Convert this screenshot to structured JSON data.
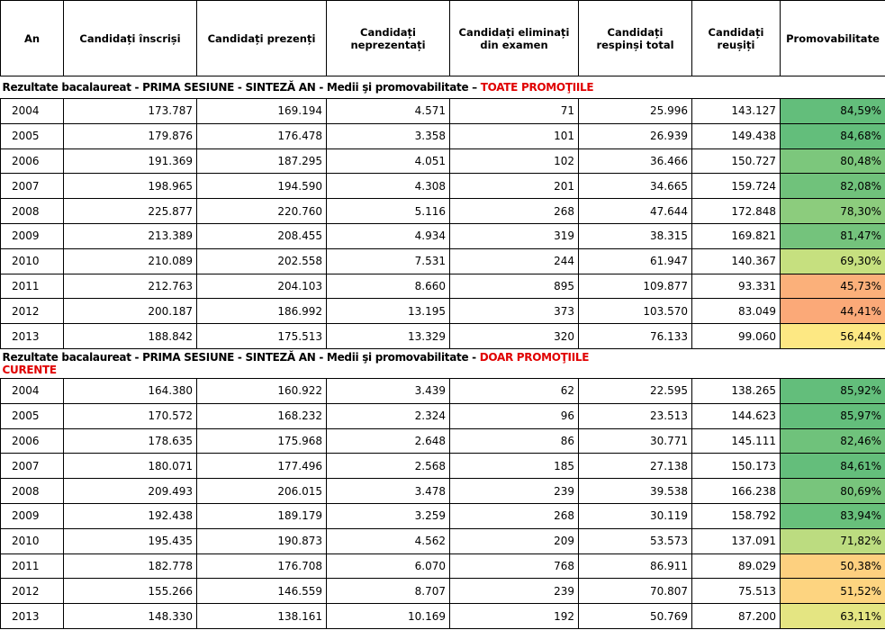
{
  "table": {
    "header": [
      "An",
      "Candidați înscriși",
      "Candidați prezenți",
      "Candidați neprezentați",
      "Candidați eliminați din examen",
      "Candidați respinși total",
      "Candidați reușiți",
      "Promovabilitate"
    ],
    "sections": [
      {
        "title": "Rezultate bacalaureat - PRIMA SESIUNE - SINTEZĂ AN - Medii şi promovabilitate –",
        "title_highlight": "TOATE PROMOŢIILE",
        "colors": [
          "#63be7b",
          "#63be7b",
          "#7cc77c",
          "#70c27b",
          "#8ccc7d",
          "#74c37c",
          "#c6e07f",
          "#fbb07a",
          "#fba978",
          "#fde883"
        ],
        "rows": [
          [
            "2004",
            "173.787",
            "169.194",
            "4.571",
            "71",
            "25.996",
            "143.127",
            "84,59%"
          ],
          [
            "2005",
            "179.876",
            "176.478",
            "3.358",
            "101",
            "26.939",
            "149.438",
            "84,68%"
          ],
          [
            "2006",
            "191.369",
            "187.295",
            "4.051",
            "102",
            "36.466",
            "150.727",
            "80,48%"
          ],
          [
            "2007",
            "198.965",
            "194.590",
            "4.308",
            "201",
            "34.665",
            "159.724",
            "82,08%"
          ],
          [
            "2008",
            "225.877",
            "220.760",
            "5.116",
            "268",
            "47.644",
            "172.848",
            "78,30%"
          ],
          [
            "2009",
            "213.389",
            "208.455",
            "4.934",
            "319",
            "38.315",
            "169.821",
            "81,47%"
          ],
          [
            "2010",
            "210.089",
            "202.558",
            "7.531",
            "244",
            "61.947",
            "140.367",
            "69,30%"
          ],
          [
            "2011",
            "212.763",
            "204.103",
            "8.660",
            "895",
            "109.877",
            "93.331",
            "45,73%"
          ],
          [
            "2012",
            "200.187",
            "186.992",
            "13.195",
            "373",
            "103.570",
            "83.049",
            "44,41%"
          ],
          [
            "2013",
            "188.842",
            "175.513",
            "13.329",
            "320",
            "76.133",
            "99.060",
            "56,44%"
          ]
        ]
      },
      {
        "title": "Rezultate bacalaureat - PRIMA SESIUNE - SINTEZĂ AN - Medii şi promovabilitate -",
        "title_highlight": "DOAR PROMOŢIILE CURENTE",
        "colors": [
          "#63be7b",
          "#63be7b",
          "#6fc27b",
          "#64be7b",
          "#78c57c",
          "#68c07b",
          "#bcdc80",
          "#fdd07f",
          "#fdd480",
          "#e4e582"
        ],
        "rows": [
          [
            "2004",
            "164.380",
            "160.922",
            "3.439",
            "62",
            "22.595",
            "138.265",
            "85,92%"
          ],
          [
            "2005",
            "170.572",
            "168.232",
            "2.324",
            "96",
            "23.513",
            "144.623",
            "85,97%"
          ],
          [
            "2006",
            "178.635",
            "175.968",
            "2.648",
            "86",
            "30.771",
            "145.111",
            "82,46%"
          ],
          [
            "2007",
            "180.071",
            "177.496",
            "2.568",
            "185",
            "27.138",
            "150.173",
            "84,61%"
          ],
          [
            "2008",
            "209.493",
            "206.015",
            "3.478",
            "239",
            "39.538",
            "166.238",
            "80,69%"
          ],
          [
            "2009",
            "192.438",
            "189.179",
            "3.259",
            "268",
            "30.119",
            "158.792",
            "83,94%"
          ],
          [
            "2010",
            "195.435",
            "190.873",
            "4.562",
            "209",
            "53.573",
            "137.091",
            "71,82%"
          ],
          [
            "2011",
            "182.778",
            "176.708",
            "6.070",
            "768",
            "86.911",
            "89.029",
            "50,38%"
          ],
          [
            "2012",
            "155.266",
            "146.559",
            "8.707",
            "239",
            "70.807",
            "75.513",
            "51,52%"
          ],
          [
            "2013",
            "148.330",
            "138.161",
            "10.169",
            "192",
            "50.769",
            "87.200",
            "63,11%"
          ]
        ]
      }
    ]
  }
}
